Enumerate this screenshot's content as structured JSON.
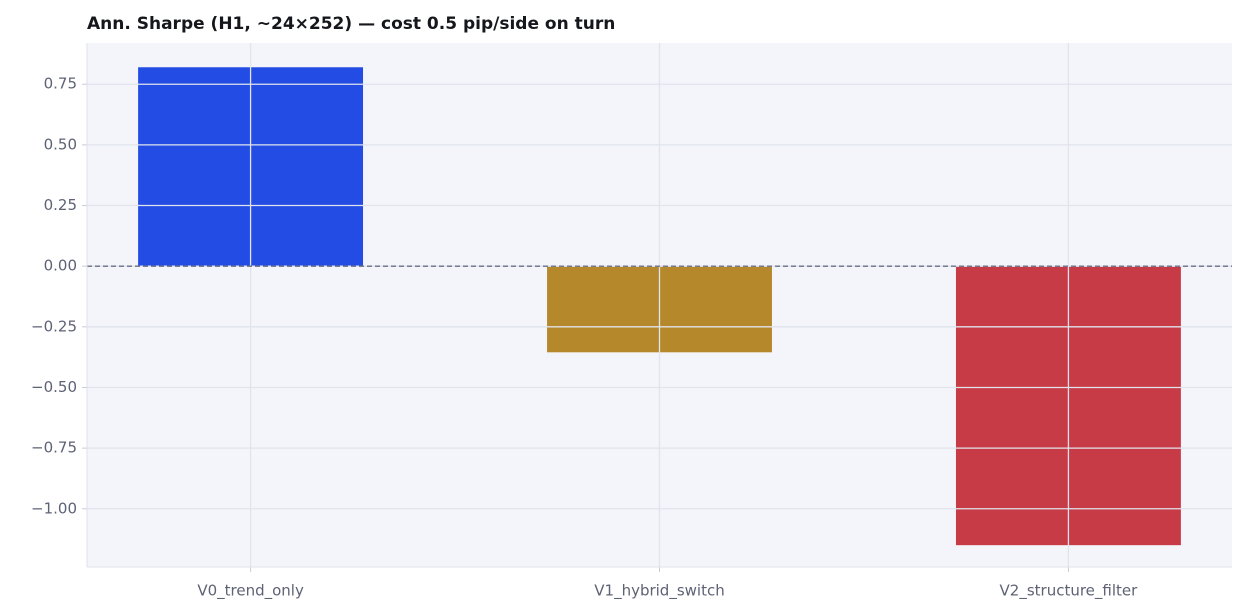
{
  "chart_data": {
    "type": "bar",
    "title": "Ann. Sharpe (H1, ~24×252) — cost 0.5 pip/side on turn",
    "categories": [
      "V0_trend_only",
      "V1_hybrid_switch",
      "V2_structure_filter"
    ],
    "values": [
      0.82,
      -0.355,
      -1.15
    ],
    "colors": [
      "#224ce3",
      "#b5892b",
      "#c73b47"
    ],
    "ylim": [
      -1.24,
      0.92
    ],
    "yticks": [
      {
        "value": -1.0,
        "label": "−1.00"
      },
      {
        "value": -0.75,
        "label": "−0.75"
      },
      {
        "value": -0.5,
        "label": "−0.50"
      },
      {
        "value": -0.25,
        "label": "−0.25"
      },
      {
        "value": 0,
        "label": "0.00"
      },
      0.25,
      {
        "value": 0.5,
        "label": "0.50"
      },
      0.75
    ],
    "grid": true
  }
}
